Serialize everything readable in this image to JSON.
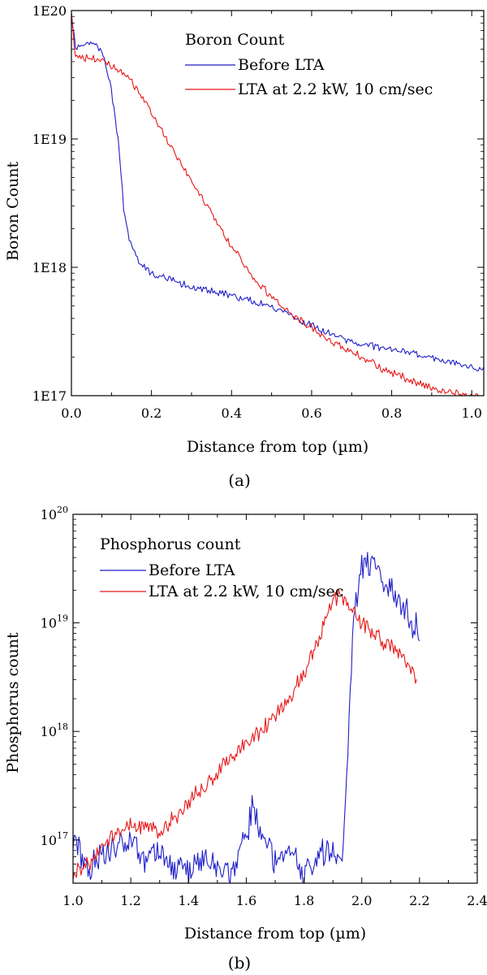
{
  "chart_data": [
    {
      "type": "line",
      "caption": "(a)",
      "xlabel": "Distance from top (µm)",
      "ylabel": "Boron Count",
      "xlim": [
        0.0,
        1.03
      ],
      "ylim": [
        1e+17,
        1e+20
      ],
      "yscale": "log",
      "x_ticks": [
        0.0,
        0.2,
        0.4,
        0.6,
        0.8,
        1.0
      ],
      "x_tick_labels": [
        "0.0",
        "0.2",
        "0.4",
        "0.6",
        "0.8",
        "1.0"
      ],
      "y_ticks": [
        1e+17,
        1e+18,
        1e+19,
        1e+20
      ],
      "y_tick_labels": [
        "1E17",
        "1E18",
        "1E19",
        "1E20"
      ],
      "legend": {
        "title": "Boron Count",
        "position": "top-right",
        "entries": [
          "Before LTA",
          "LTA at 2.2 kW, 10 cm/sec"
        ]
      },
      "series": [
        {
          "name": "Before LTA",
          "color": "#1f1fc8",
          "noise": 0.018,
          "x": [
            0.0,
            0.01,
            0.02,
            0.04,
            0.06,
            0.08,
            0.1,
            0.12,
            0.13,
            0.14,
            0.15,
            0.17,
            0.2,
            0.25,
            0.3,
            0.4,
            0.5,
            0.6,
            0.7,
            0.8,
            0.9,
            1.0,
            1.03
          ],
          "y": [
            9.5e+19,
            5.2e+19,
            5.3e+19,
            5.6e+19,
            5.5e+19,
            4.5e+19,
            2.4e+19,
            8e+18,
            3e+18,
            1.9e+18,
            1.45e+18,
            1.1e+18,
            9e+17,
            8e+17,
            7e+17,
            6e+17,
            5e+17,
            3.5e+17,
            2.6e+17,
            2.3e+17,
            2e+17,
            1.7e+17,
            1.6e+17
          ]
        },
        {
          "name": "LTA at 2.2 kW, 10 cm/sec",
          "color": "#e81818",
          "noise": 0.02,
          "x": [
            0.0,
            0.01,
            0.05,
            0.1,
            0.15,
            0.2,
            0.25,
            0.3,
            0.35,
            0.4,
            0.45,
            0.5,
            0.55,
            0.6,
            0.65,
            0.7,
            0.75,
            0.8,
            0.85,
            0.9,
            0.95,
            1.0,
            1.03
          ],
          "y": [
            9.5e+19,
            4.3e+19,
            4.2e+19,
            3.8e+19,
            2.8e+19,
            1.6e+19,
            8.5e+18,
            4.7e+18,
            2.6e+18,
            1.45e+18,
            8.8e+17,
            5.8e+17,
            4.3e+17,
            3.4e+17,
            2.6e+17,
            2.2e+17,
            1.8e+17,
            1.5e+17,
            1.3e+17,
            1.15e+17,
            1.05e+17,
            1e+17,
            9.8e+16
          ]
        }
      ]
    },
    {
      "type": "line",
      "caption": "(b)",
      "xlabel": "Distance from top (µm)",
      "ylabel": "Phosphorus count",
      "xlim": [
        1.0,
        2.4
      ],
      "ylim": [
        4e+16,
        1e+20
      ],
      "yscale": "log",
      "x_ticks": [
        1.0,
        1.2,
        1.4,
        1.6,
        1.8,
        2.0,
        2.2,
        2.4
      ],
      "x_tick_labels": [
        "1.0",
        "1.2",
        "1.4",
        "1.6",
        "1.8",
        "2.0",
        "2.2",
        "2.4"
      ],
      "y_ticks": [
        1e+17,
        1e+18,
        1e+19,
        1e+20
      ],
      "y_tick_labels": [
        {
          "base": "10",
          "exp": "17"
        },
        {
          "base": "10",
          "exp": "18"
        },
        {
          "base": "10",
          "exp": "19"
        },
        {
          "base": "10",
          "exp": "20"
        }
      ],
      "legend": {
        "title": "Phosphorus count",
        "position": "top-right",
        "entries": [
          "Before LTA",
          "LTA at 2.2 kW, 10 cm/sec"
        ]
      },
      "series": [
        {
          "name": "Before LTA",
          "color": "#1f1fc8",
          "noise": 0.09,
          "x": [
            1.0,
            1.05,
            1.1,
            1.15,
            1.2,
            1.25,
            1.3,
            1.35,
            1.4,
            1.45,
            1.5,
            1.55,
            1.6,
            1.62,
            1.65,
            1.7,
            1.75,
            1.8,
            1.85,
            1.9,
            1.93,
            1.95,
            1.97,
            2.0,
            2.01,
            2.05,
            2.1,
            2.15,
            2.18,
            2.2
          ],
          "y": [
            1e+17,
            5e+16,
            7e+16,
            9e+16,
            1e+17,
            6e+16,
            8e+16,
            6e+16,
            5e+16,
            7e+16,
            6e+16,
            5e+16,
            1.2e+17,
            1.8e+17,
            1.3e+17,
            6e+16,
            8e+16,
            5e+16,
            7e+16,
            9e+16,
            7e+16,
            5e+17,
            1e+19,
            3.4e+19,
            3.6e+19,
            3e+19,
            2e+19,
            1.3e+19,
            9e+18,
            8.5e+18
          ]
        },
        {
          "name": "LTA at 2.2 kW, 10 cm/sec",
          "color": "#e81818",
          "noise": 0.05,
          "x": [
            1.0,
            1.05,
            1.1,
            1.15,
            1.2,
            1.25,
            1.3,
            1.35,
            1.4,
            1.45,
            1.5,
            1.55,
            1.6,
            1.65,
            1.7,
            1.75,
            1.8,
            1.85,
            1.88,
            1.92,
            1.95,
            2.0,
            2.05,
            2.1,
            2.15,
            2.19
          ],
          "y": [
            5e+16,
            6e+16,
            8e+16,
            1.2e+17,
            1.4e+17,
            1.3e+17,
            1.2e+17,
            1.6e+17,
            2.2e+17,
            3e+17,
            4.2e+17,
            5.8e+17,
            7.5e+17,
            1e+18,
            1.4e+18,
            2.1e+18,
            3.5e+18,
            7e+18,
            1.2e+19,
            1.8e+19,
            1.5e+19,
            1e+19,
            7.5e+18,
            6e+18,
            4.5e+18,
            3e+18
          ]
        }
      ]
    }
  ]
}
